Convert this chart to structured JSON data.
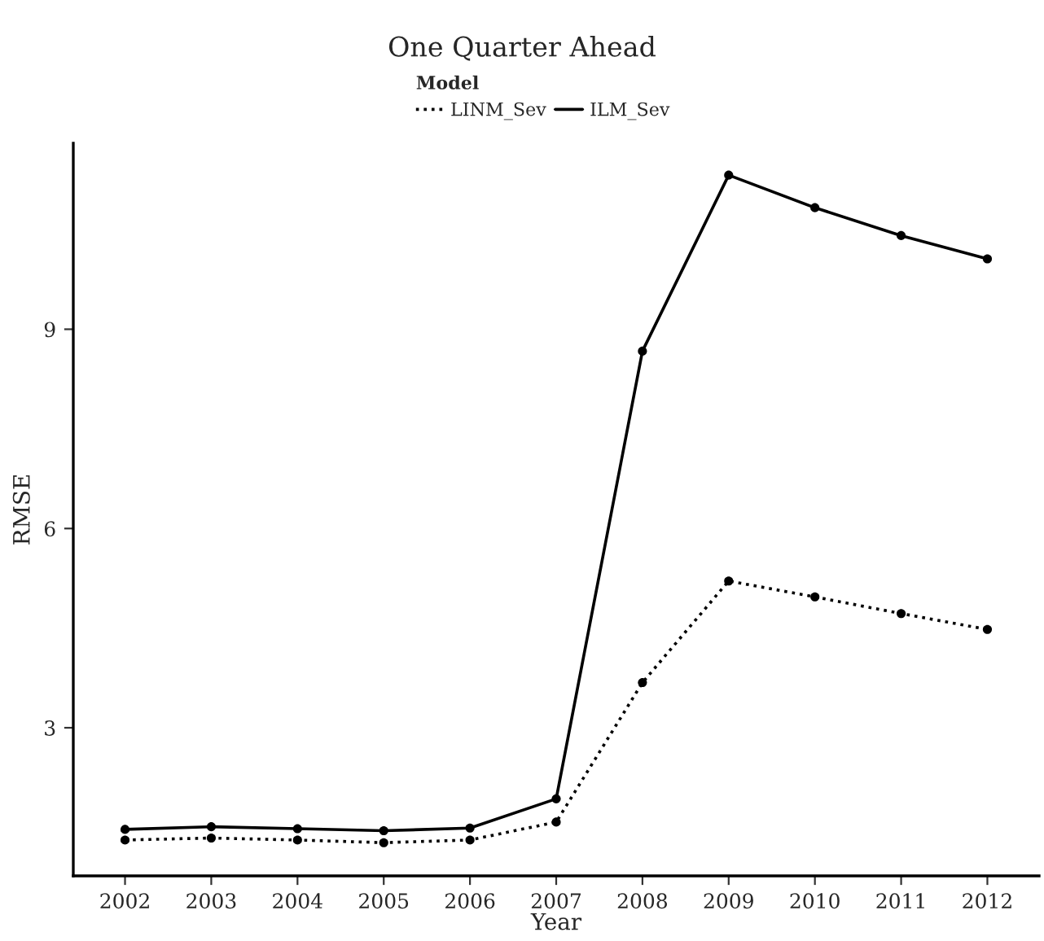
{
  "chart_data": {
    "type": "line",
    "title": "One Quarter Ahead",
    "xlabel": "Year",
    "ylabel": "RMSE",
    "legend_title": "Model",
    "x": [
      2002,
      2003,
      2004,
      2005,
      2006,
      2007,
      2008,
      2009,
      2010,
      2011,
      2012
    ],
    "series": [
      {
        "name": "LINM_Sev",
        "color": "#000000",
        "line_style": "dotted",
        "values": [
          1.31,
          1.34,
          1.31,
          1.27,
          1.31,
          1.58,
          3.68,
          5.21,
          4.97,
          4.72,
          4.48
        ]
      },
      {
        "name": "ILM_Sev",
        "color": "#000000",
        "line_style": "solid",
        "values": [
          1.47,
          1.51,
          1.48,
          1.45,
          1.49,
          1.93,
          8.67,
          11.32,
          10.83,
          10.41,
          10.06
        ]
      }
    ],
    "marker": "circle",
    "xlim": [
      2001.4,
      2012.6
    ],
    "ylim": [
      0.77,
      11.8
    ],
    "xticks": [
      2002,
      2003,
      2004,
      2005,
      2006,
      2007,
      2008,
      2009,
      2010,
      2011,
      2012
    ],
    "yticks": [
      3,
      6,
      9
    ],
    "grid": false,
    "legend": "top"
  }
}
